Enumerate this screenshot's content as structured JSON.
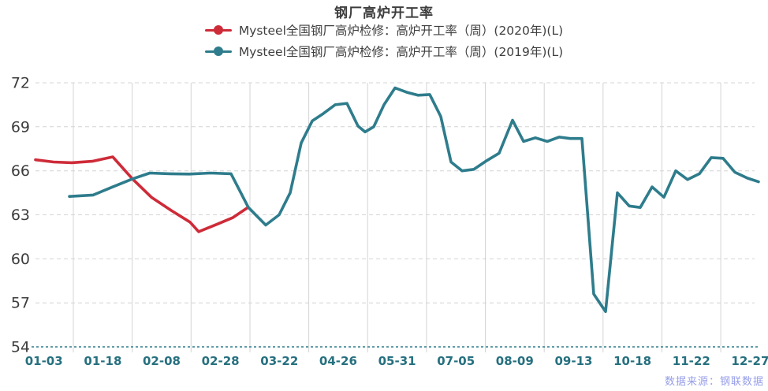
{
  "title": "钢厂高炉开工率",
  "legend": [
    {
      "label": "Mysteel全国钢厂高炉检修：高炉开工率（周）(2020年)(L)",
      "color": "#ce2b38"
    },
    {
      "label": "Mysteel全国钢厂高炉检修：高炉开工率（周）(2019年)(L)",
      "color": "#2e7c8c"
    }
  ],
  "source_note": "数据来源：钢联数据",
  "colors": {
    "background": "#ffffff",
    "red_series": "#ce2b38",
    "teal_series": "#2e7c8c",
    "grid": "#d4d4d4",
    "axis_line": "#2e7c8c",
    "ytick_label": "#3d3d3d",
    "xtick_label": "#26707f",
    "title_text": "#3e3e3e",
    "legend_text": "#404040",
    "watermark": "#8a93e6"
  },
  "chart_data": {
    "type": "line",
    "title": "钢厂高炉开工率",
    "xlabel": "",
    "ylabel": "",
    "ylim": [
      54,
      72
    ],
    "yticks": [
      54,
      57,
      60,
      63,
      66,
      69,
      72
    ],
    "xtick_labels": [
      "01-03",
      "01-18",
      "02-08",
      "02-28",
      "03-22",
      "04-26",
      "05-31",
      "07-05",
      "08-09",
      "09-13",
      "10-18",
      "11-22",
      "12-27"
    ],
    "grid": true,
    "legend_position": "top",
    "x_unit": "px",
    "series": [
      {
        "name": "Mysteel全国钢厂高炉检修：高炉开工率（周）(2020年)(L)",
        "color": "#ce2b38",
        "points": [
          [
            45,
            66.75
          ],
          [
            68,
            66.6
          ],
          [
            91,
            66.55
          ],
          [
            117,
            66.65
          ],
          [
            143,
            66.95
          ],
          [
            168,
            65.45
          ],
          [
            192,
            64.2
          ],
          [
            217,
            63.3
          ],
          [
            241,
            62.5
          ],
          [
            252,
            61.85
          ],
          [
            275,
            62.35
          ],
          [
            295,
            62.8
          ],
          [
            313,
            63.45
          ]
        ]
      },
      {
        "name": "Mysteel全国钢厂高炉检修：高炉开工率（周）(2019年)(L)",
        "color": "#2e7c8c",
        "points": [
          [
            88,
            64.25
          ],
          [
            103,
            64.3
          ],
          [
            118,
            64.35
          ],
          [
            143,
            64.9
          ],
          [
            168,
            65.45
          ],
          [
            190,
            65.85
          ],
          [
            215,
            65.8
          ],
          [
            240,
            65.78
          ],
          [
            267,
            65.85
          ],
          [
            293,
            65.8
          ],
          [
            315,
            63.5
          ],
          [
            337,
            62.3
          ],
          [
            354,
            63.0
          ],
          [
            368,
            64.5
          ],
          [
            382,
            67.9
          ],
          [
            396,
            69.4
          ],
          [
            410,
            69.9
          ],
          [
            425,
            70.5
          ],
          [
            440,
            70.6
          ],
          [
            454,
            69.05
          ],
          [
            463,
            68.65
          ],
          [
            474,
            69.0
          ],
          [
            487,
            70.5
          ],
          [
            501,
            71.65
          ],
          [
            516,
            71.35
          ],
          [
            530,
            71.15
          ],
          [
            545,
            71.2
          ],
          [
            559,
            69.7
          ],
          [
            572,
            66.6
          ],
          [
            586,
            66.0
          ],
          [
            601,
            66.1
          ],
          [
            616,
            66.65
          ],
          [
            633,
            67.2
          ],
          [
            650,
            69.45
          ],
          [
            664,
            68.0
          ],
          [
            679,
            68.25
          ],
          [
            694,
            68.0
          ],
          [
            709,
            68.3
          ],
          [
            723,
            68.2
          ],
          [
            738,
            68.2
          ],
          [
            753,
            57.6
          ],
          [
            768,
            56.4
          ],
          [
            783,
            64.5
          ],
          [
            798,
            63.6
          ],
          [
            812,
            63.5
          ],
          [
            827,
            64.9
          ],
          [
            842,
            64.2
          ],
          [
            857,
            66.0
          ],
          [
            872,
            65.4
          ],
          [
            887,
            65.8
          ],
          [
            902,
            66.9
          ],
          [
            917,
            66.85
          ],
          [
            932,
            65.9
          ],
          [
            948,
            65.5
          ],
          [
            962,
            65.25
          ]
        ]
      }
    ]
  }
}
